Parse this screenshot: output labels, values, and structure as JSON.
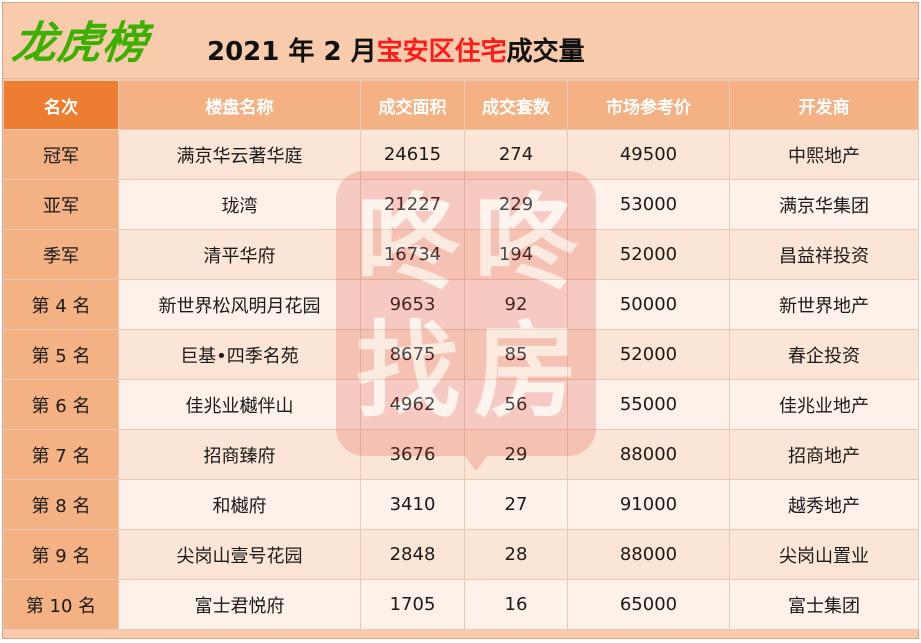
{
  "header": {
    "brand": "龙虎榜",
    "headline_prefix": "2021 年 2 月",
    "headline_highlight": "宝安区住宅",
    "headline_suffix": "成交量",
    "colors": {
      "brand": "#3bb000",
      "highlight": "#ff1a1a",
      "rank_column": "#f4b183",
      "header_row": "#f4b183"
    }
  },
  "watermark": {
    "chars": [
      "咚",
      "咚",
      "找",
      "房"
    ]
  },
  "table": {
    "columns": [
      "名次",
      "楼盘名称",
      "成交面积",
      "成交套数",
      "市场参考价",
      "开发商"
    ],
    "rows": [
      {
        "rank": "冠军",
        "name": "满京华云著华庭",
        "area": "24615",
        "units": "274",
        "price": "49500",
        "developer": "中熙地产"
      },
      {
        "rank": "亚军",
        "name": "珑湾",
        "area": "21227",
        "units": "229",
        "price": "53000",
        "developer": "满京华集团"
      },
      {
        "rank": "季军",
        "name": "清平华府",
        "area": "16734",
        "units": "194",
        "price": "52000",
        "developer": "昌益祥投资"
      },
      {
        "rank": "第 4 名",
        "name": "新世界松风明月花园",
        "area": "9653",
        "units": "92",
        "price": "50000",
        "developer": "新世界地产"
      },
      {
        "rank": "第 5 名",
        "name": "巨基•四季名苑",
        "area": "8675",
        "units": "85",
        "price": "52000",
        "developer": "春企投资"
      },
      {
        "rank": "第 6 名",
        "name": "佳兆业樾伴山",
        "area": "4962",
        "units": "56",
        "price": "55000",
        "developer": "佳兆业地产"
      },
      {
        "rank": "第 7 名",
        "name": "招商臻府",
        "area": "3676",
        "units": "29",
        "price": "88000",
        "developer": "招商地产"
      },
      {
        "rank": "第 8 名",
        "name": "和樾府",
        "area": "3410",
        "units": "27",
        "price": "91000",
        "developer": "越秀地产"
      },
      {
        "rank": "第 9 名",
        "name": "尖岗山壹号花园",
        "area": "2848",
        "units": "28",
        "price": "88000",
        "developer": "尖岗山置业"
      },
      {
        "rank": "第 10 名",
        "name": "富士君悦府",
        "area": "1705",
        "units": "16",
        "price": "65000",
        "developer": "富士集团"
      }
    ]
  }
}
